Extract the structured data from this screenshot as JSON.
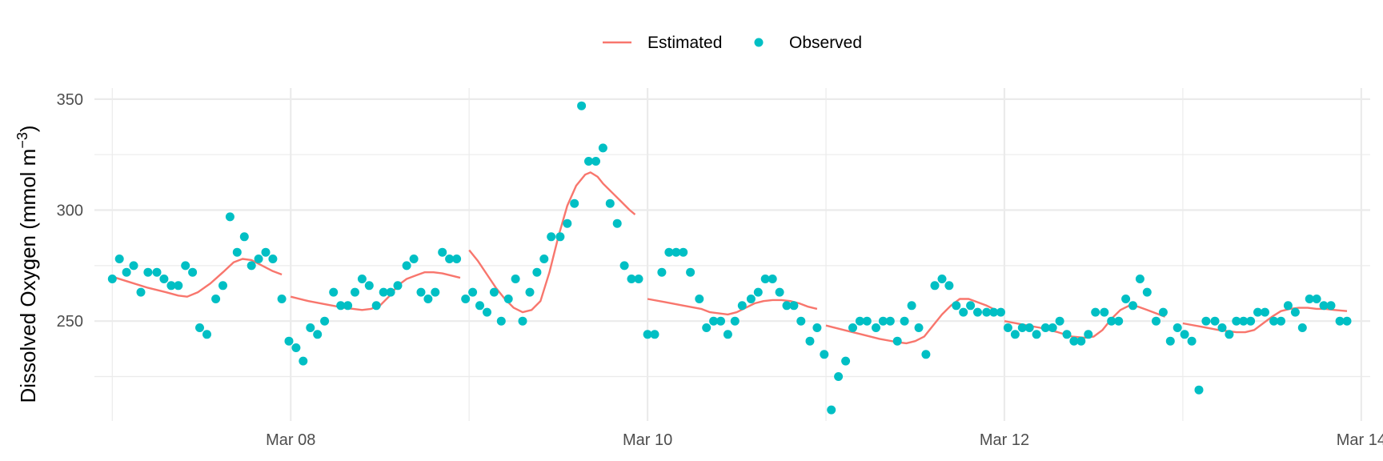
{
  "chart_data": {
    "type": "line+scatter",
    "title": "",
    "xlabel": "",
    "ylabel": "Dissolved Oxygen (mmol m",
    "ylabel_superscript": "−3",
    "ylabel_close": ")",
    "xlim": [
      -0.1,
      7.05
    ],
    "ylim": [
      205,
      355
    ],
    "x_ticks": [
      {
        "x": 1,
        "label": "Mar 08"
      },
      {
        "x": 3,
        "label": "Mar 10"
      },
      {
        "x": 5,
        "label": "Mar 12"
      },
      {
        "x": 7,
        "label": "Mar 14"
      }
    ],
    "y_ticks": [
      {
        "y": 250,
        "label": "250"
      },
      {
        "y": 300,
        "label": "300"
      },
      {
        "y": 350,
        "label": "350"
      }
    ],
    "grid": true,
    "legend": {
      "position": "top",
      "entries": [
        {
          "label": "Estimated",
          "kind": "line"
        },
        {
          "label": "Observed",
          "kind": "point"
        }
      ]
    },
    "x_origin_note": "x measured in days from Mar 07 00:00",
    "colors": {
      "estimated": "#f8766d",
      "observed": "#00bfc4",
      "grid": "#ebebeb"
    },
    "observed": [
      [
        0.0,
        269
      ],
      [
        0.04,
        278
      ],
      [
        0.08,
        272
      ],
      [
        0.12,
        275
      ],
      [
        0.16,
        263
      ],
      [
        0.2,
        272
      ],
      [
        0.25,
        272
      ],
      [
        0.29,
        269
      ],
      [
        0.33,
        266
      ],
      [
        0.37,
        266
      ],
      [
        0.41,
        275
      ],
      [
        0.45,
        272
      ],
      [
        0.49,
        247
      ],
      [
        0.53,
        244
      ],
      [
        0.58,
        260
      ],
      [
        0.62,
        266
      ],
      [
        0.66,
        297
      ],
      [
        0.7,
        281
      ],
      [
        0.74,
        288
      ],
      [
        0.78,
        275
      ],
      [
        0.82,
        278
      ],
      [
        0.86,
        281
      ],
      [
        0.9,
        278
      ],
      [
        0.95,
        260
      ],
      [
        0.99,
        241
      ],
      [
        1.03,
        238
      ],
      [
        1.07,
        232
      ],
      [
        1.11,
        247
      ],
      [
        1.15,
        244
      ],
      [
        1.19,
        250
      ],
      [
        1.24,
        263
      ],
      [
        1.28,
        257
      ],
      [
        1.32,
        257
      ],
      [
        1.36,
        263
      ],
      [
        1.4,
        269
      ],
      [
        1.44,
        266
      ],
      [
        1.48,
        257
      ],
      [
        1.52,
        263
      ],
      [
        1.56,
        263
      ],
      [
        1.6,
        266
      ],
      [
        1.65,
        275
      ],
      [
        1.69,
        278
      ],
      [
        1.73,
        263
      ],
      [
        1.77,
        260
      ],
      [
        1.81,
        263
      ],
      [
        1.85,
        281
      ],
      [
        1.89,
        278
      ],
      [
        1.93,
        278
      ],
      [
        1.98,
        260
      ],
      [
        2.02,
        263
      ],
      [
        2.06,
        257
      ],
      [
        2.1,
        254
      ],
      [
        2.14,
        263
      ],
      [
        2.18,
        250
      ],
      [
        2.22,
        260
      ],
      [
        2.26,
        269
      ],
      [
        2.3,
        250
      ],
      [
        2.34,
        263
      ],
      [
        2.38,
        272
      ],
      [
        2.42,
        278
      ],
      [
        2.46,
        288
      ],
      [
        2.51,
        288
      ],
      [
        2.55,
        294
      ],
      [
        2.59,
        303
      ],
      [
        2.63,
        347
      ],
      [
        2.67,
        322
      ],
      [
        2.71,
        322
      ],
      [
        2.75,
        328
      ],
      [
        2.79,
        303
      ],
      [
        2.83,
        294
      ],
      [
        2.87,
        275
      ],
      [
        2.91,
        269
      ],
      [
        2.95,
        269
      ],
      [
        3.0,
        244
      ],
      [
        3.04,
        244
      ],
      [
        3.08,
        272
      ],
      [
        3.12,
        281
      ],
      [
        3.16,
        281
      ],
      [
        3.2,
        281
      ],
      [
        3.24,
        272
      ],
      [
        3.29,
        260
      ],
      [
        3.33,
        247
      ],
      [
        3.37,
        250
      ],
      [
        3.41,
        250
      ],
      [
        3.45,
        244
      ],
      [
        3.49,
        250
      ],
      [
        3.53,
        257
      ],
      [
        3.58,
        260
      ],
      [
        3.62,
        263
      ],
      [
        3.66,
        269
      ],
      [
        3.7,
        269
      ],
      [
        3.74,
        263
      ],
      [
        3.78,
        257
      ],
      [
        3.82,
        257
      ],
      [
        3.86,
        250
      ],
      [
        3.91,
        241
      ],
      [
        3.95,
        247
      ],
      [
        3.99,
        235
      ],
      [
        4.03,
        210
      ],
      [
        4.07,
        225
      ],
      [
        4.11,
        232
      ],
      [
        4.15,
        247
      ],
      [
        4.19,
        250
      ],
      [
        4.23,
        250
      ],
      [
        4.28,
        247
      ],
      [
        4.32,
        250
      ],
      [
        4.36,
        250
      ],
      [
        4.4,
        241
      ],
      [
        4.44,
        250
      ],
      [
        4.48,
        257
      ],
      [
        4.52,
        247
      ],
      [
        4.56,
        235
      ],
      [
        4.61,
        266
      ],
      [
        4.65,
        269
      ],
      [
        4.69,
        266
      ],
      [
        4.73,
        257
      ],
      [
        4.77,
        254
      ],
      [
        4.81,
        257
      ],
      [
        4.85,
        254
      ],
      [
        4.9,
        254
      ],
      [
        4.94,
        254
      ],
      [
        4.98,
        254
      ],
      [
        5.02,
        247
      ],
      [
        5.06,
        244
      ],
      [
        5.1,
        247
      ],
      [
        5.14,
        247
      ],
      [
        5.18,
        244
      ],
      [
        5.23,
        247
      ],
      [
        5.27,
        247
      ],
      [
        5.31,
        250
      ],
      [
        5.35,
        244
      ],
      [
        5.39,
        241
      ],
      [
        5.43,
        241
      ],
      [
        5.47,
        244
      ],
      [
        5.51,
        254
      ],
      [
        5.56,
        254
      ],
      [
        5.6,
        250
      ],
      [
        5.64,
        250
      ],
      [
        5.68,
        260
      ],
      [
        5.72,
        257
      ],
      [
        5.76,
        269
      ],
      [
        5.8,
        263
      ],
      [
        5.85,
        250
      ],
      [
        5.89,
        254
      ],
      [
        5.93,
        241
      ],
      [
        5.97,
        247
      ],
      [
        6.01,
        244
      ],
      [
        6.05,
        241
      ],
      [
        6.09,
        219
      ],
      [
        6.13,
        250
      ],
      [
        6.18,
        250
      ],
      [
        6.22,
        247
      ],
      [
        6.26,
        244
      ],
      [
        6.3,
        250
      ],
      [
        6.34,
        250
      ],
      [
        6.38,
        250
      ],
      [
        6.42,
        254
      ],
      [
        6.46,
        254
      ],
      [
        6.51,
        250
      ],
      [
        6.55,
        250
      ],
      [
        6.59,
        257
      ],
      [
        6.63,
        254
      ],
      [
        6.67,
        247
      ],
      [
        6.71,
        260
      ],
      [
        6.75,
        260
      ],
      [
        6.79,
        257
      ],
      [
        6.83,
        257
      ],
      [
        6.88,
        250
      ],
      [
        6.92,
        250
      ]
    ],
    "estimated_segments": [
      [
        [
          0.0,
          270
        ],
        [
          0.1,
          267.5
        ],
        [
          0.2,
          265
        ],
        [
          0.3,
          263
        ],
        [
          0.37,
          261.5
        ],
        [
          0.42,
          261
        ],
        [
          0.48,
          263
        ],
        [
          0.55,
          267
        ],
        [
          0.62,
          272
        ],
        [
          0.68,
          276.5
        ],
        [
          0.73,
          278
        ],
        [
          0.78,
          277.5
        ],
        [
          0.84,
          275
        ],
        [
          0.9,
          272.5
        ],
        [
          0.95,
          271
        ]
      ],
      [
        [
          1.0,
          261
        ],
        [
          1.1,
          259
        ],
        [
          1.2,
          257.5
        ],
        [
          1.3,
          256
        ],
        [
          1.4,
          255
        ],
        [
          1.45,
          255.5
        ],
        [
          1.5,
          257
        ],
        [
          1.55,
          261
        ],
        [
          1.6,
          266
        ],
        [
          1.65,
          269
        ],
        [
          1.7,
          270.5
        ],
        [
          1.75,
          272
        ],
        [
          1.8,
          272
        ],
        [
          1.85,
          271.5
        ],
        [
          1.9,
          270.5
        ],
        [
          1.95,
          269.5
        ]
      ],
      [
        [
          2.0,
          282
        ],
        [
          2.05,
          277
        ],
        [
          2.1,
          271
        ],
        [
          2.15,
          265
        ],
        [
          2.2,
          260
        ],
        [
          2.25,
          256
        ],
        [
          2.3,
          254
        ],
        [
          2.35,
          255
        ],
        [
          2.4,
          259
        ],
        [
          2.45,
          272
        ],
        [
          2.5,
          288
        ],
        [
          2.55,
          302
        ],
        [
          2.6,
          311
        ],
        [
          2.65,
          316
        ],
        [
          2.68,
          317
        ],
        [
          2.72,
          315
        ],
        [
          2.75,
          312
        ],
        [
          2.8,
          308
        ],
        [
          2.85,
          304
        ],
        [
          2.9,
          300
        ],
        [
          2.93,
          298
        ]
      ],
      [
        [
          3.0,
          260
        ],
        [
          3.1,
          258.5
        ],
        [
          3.2,
          257
        ],
        [
          3.3,
          255.5
        ],
        [
          3.35,
          254
        ],
        [
          3.45,
          253
        ],
        [
          3.5,
          254
        ],
        [
          3.6,
          258
        ],
        [
          3.65,
          259
        ],
        [
          3.7,
          259.5
        ],
        [
          3.75,
          259.5
        ],
        [
          3.8,
          259
        ],
        [
          3.85,
          258
        ],
        [
          3.9,
          256.5
        ],
        [
          3.95,
          255.5
        ]
      ],
      [
        [
          4.0,
          248
        ],
        [
          4.1,
          246
        ],
        [
          4.2,
          244
        ],
        [
          4.3,
          242
        ],
        [
          4.4,
          240.5
        ],
        [
          4.45,
          240
        ],
        [
          4.5,
          241
        ],
        [
          4.55,
          243
        ],
        [
          4.6,
          248
        ],
        [
          4.65,
          253
        ],
        [
          4.7,
          257
        ],
        [
          4.75,
          260
        ],
        [
          4.8,
          260
        ],
        [
          4.85,
          258.5
        ],
        [
          4.9,
          257
        ],
        [
          4.95,
          255
        ]
      ],
      [
        [
          5.0,
          250
        ],
        [
          5.1,
          248.5
        ],
        [
          5.2,
          247
        ],
        [
          5.3,
          245
        ],
        [
          5.38,
          243
        ],
        [
          5.45,
          242.5
        ],
        [
          5.5,
          243
        ],
        [
          5.55,
          246
        ],
        [
          5.6,
          251
        ],
        [
          5.65,
          255
        ],
        [
          5.7,
          257
        ],
        [
          5.75,
          256.5
        ],
        [
          5.8,
          255
        ],
        [
          5.85,
          253.5
        ],
        [
          5.9,
          252
        ]
      ],
      [
        [
          6.0,
          249
        ],
        [
          6.1,
          247.5
        ],
        [
          6.2,
          246
        ],
        [
          6.3,
          245
        ],
        [
          6.35,
          245
        ],
        [
          6.4,
          246
        ],
        [
          6.45,
          249
        ],
        [
          6.5,
          252
        ],
        [
          6.55,
          254.5
        ],
        [
          6.6,
          255.5
        ],
        [
          6.65,
          256
        ],
        [
          6.7,
          256
        ],
        [
          6.75,
          255.5
        ],
        [
          6.8,
          255.5
        ],
        [
          6.85,
          255
        ],
        [
          6.92,
          254.5
        ]
      ]
    ]
  }
}
